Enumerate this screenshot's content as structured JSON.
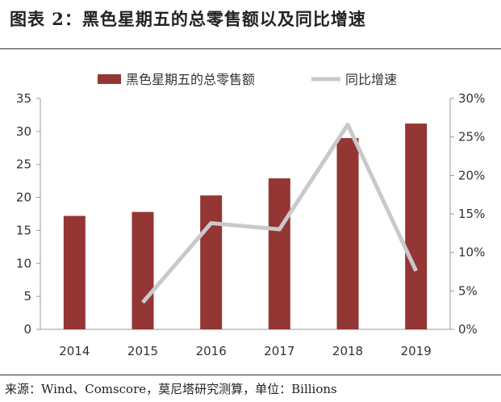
{
  "title": "图表 2：黑色星期五的总零售额以及同比增速",
  "source": "来源：Wind、Comscore，莫尼塔研究测算，单位：Billions",
  "chart_data": {
    "type": "bar",
    "categories": [
      "2014",
      "2015",
      "2016",
      "2017",
      "2018",
      "2019"
    ],
    "series": [
      {
        "name": "黑色星期五的总零售额",
        "type": "bar",
        "axis": "left",
        "color": "#943634",
        "values": [
          17.2,
          17.8,
          20.3,
          22.9,
          29.0,
          31.2
        ]
      },
      {
        "name": "同比增速",
        "type": "line",
        "axis": "right",
        "color": "#c9c9c9",
        "values": [
          null,
          3.5,
          13.8,
          13.0,
          26.6,
          7.6
        ]
      }
    ],
    "ylim": [
      0,
      35
    ],
    "y_ticks": [
      "0",
      "5",
      "10",
      "15",
      "20",
      "25",
      "30",
      "35"
    ],
    "y2lim": [
      0,
      30
    ],
    "y2_ticks": [
      "0%",
      "5%",
      "10%",
      "15%",
      "20%",
      "25%",
      "30%"
    ],
    "legend_position": "top",
    "grid": false
  }
}
